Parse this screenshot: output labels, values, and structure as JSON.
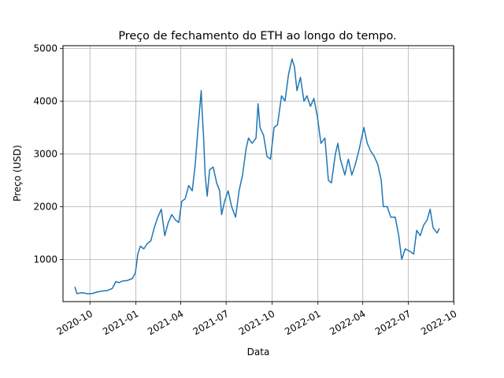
{
  "chart_data": {
    "type": "line",
    "title": "Preço de fechamento do ETH ao longo do tempo.",
    "xlabel": "Data",
    "ylabel": "Preço (USD)",
    "xlim": [
      "2020-08-08",
      "2022-09-30"
    ],
    "ylim": [
      200,
      5050
    ],
    "grid": true,
    "legend": "none",
    "x_ticks": [
      "2020-10",
      "2021-01",
      "2021-04",
      "2021-07",
      "2021-10",
      "2022-01",
      "2022-04",
      "2022-07",
      "2022-10"
    ],
    "x_tick_dates": [
      "2020-10-01",
      "2021-01-01",
      "2021-04-01",
      "2021-07-01",
      "2021-10-01",
      "2022-01-01",
      "2022-04-01",
      "2022-07-01",
      "2022-10-01"
    ],
    "y_ticks": [
      1000,
      2000,
      3000,
      4000,
      5000
    ],
    "y_tick_labels": [
      "1000",
      "2000",
      "3000",
      "4000",
      "5000"
    ],
    "series": [
      {
        "color": "#1f77b4",
        "points": [
          [
            "2020-09-01",
            470
          ],
          [
            "2020-09-05",
            350
          ],
          [
            "2020-09-15",
            370
          ],
          [
            "2020-09-25",
            350
          ],
          [
            "2020-10-05",
            350
          ],
          [
            "2020-10-15",
            380
          ],
          [
            "2020-10-25",
            400
          ],
          [
            "2020-11-05",
            410
          ],
          [
            "2020-11-15",
            450
          ],
          [
            "2020-11-22",
            580
          ],
          [
            "2020-11-28",
            560
          ],
          [
            "2020-12-05",
            590
          ],
          [
            "2020-12-15",
            600
          ],
          [
            "2020-12-25",
            640
          ],
          [
            "2020-12-31",
            740
          ],
          [
            "2021-01-05",
            1100
          ],
          [
            "2021-01-10",
            1250
          ],
          [
            "2021-01-17",
            1200
          ],
          [
            "2021-01-24",
            1300
          ],
          [
            "2021-01-31",
            1350
          ],
          [
            "2021-02-07",
            1600
          ],
          [
            "2021-02-14",
            1800
          ],
          [
            "2021-02-21",
            1950
          ],
          [
            "2021-02-28",
            1450
          ],
          [
            "2021-03-07",
            1700
          ],
          [
            "2021-03-14",
            1850
          ],
          [
            "2021-03-21",
            1750
          ],
          [
            "2021-03-28",
            1700
          ],
          [
            "2021-04-03",
            2100
          ],
          [
            "2021-04-10",
            2150
          ],
          [
            "2021-04-17",
            2400
          ],
          [
            "2021-04-24",
            2300
          ],
          [
            "2021-04-30",
            2800
          ],
          [
            "2021-05-05",
            3400
          ],
          [
            "2021-05-12",
            4200
          ],
          [
            "2021-05-14",
            3800
          ],
          [
            "2021-05-17",
            3300
          ],
          [
            "2021-05-20",
            2600
          ],
          [
            "2021-05-24",
            2200
          ],
          [
            "2021-05-29",
            2700
          ],
          [
            "2021-06-05",
            2750
          ],
          [
            "2021-06-12",
            2450
          ],
          [
            "2021-06-18",
            2300
          ],
          [
            "2021-06-22",
            1850
          ],
          [
            "2021-06-28",
            2100
          ],
          [
            "2021-07-05",
            2300
          ],
          [
            "2021-07-12",
            2000
          ],
          [
            "2021-07-20",
            1800
          ],
          [
            "2021-07-27",
            2300
          ],
          [
            "2021-08-03",
            2600
          ],
          [
            "2021-08-10",
            3100
          ],
          [
            "2021-08-15",
            3300
          ],
          [
            "2021-08-22",
            3200
          ],
          [
            "2021-08-30",
            3300
          ],
          [
            "2021-09-03",
            3950
          ],
          [
            "2021-09-07",
            3500
          ],
          [
            "2021-09-14",
            3350
          ],
          [
            "2021-09-21",
            2950
          ],
          [
            "2021-09-28",
            2900
          ],
          [
            "2021-10-05",
            3500
          ],
          [
            "2021-10-12",
            3550
          ],
          [
            "2021-10-20",
            4100
          ],
          [
            "2021-10-27",
            4000
          ],
          [
            "2021-11-03",
            4500
          ],
          [
            "2021-11-10",
            4800
          ],
          [
            "2021-11-15",
            4650
          ],
          [
            "2021-11-20",
            4200
          ],
          [
            "2021-11-27",
            4450
          ],
          [
            "2021-12-04",
            4000
          ],
          [
            "2021-12-10",
            4100
          ],
          [
            "2021-12-17",
            3900
          ],
          [
            "2021-12-24",
            4050
          ],
          [
            "2021-12-31",
            3700
          ],
          [
            "2022-01-07",
            3200
          ],
          [
            "2022-01-15",
            3300
          ],
          [
            "2022-01-22",
            2500
          ],
          [
            "2022-01-28",
            2450
          ],
          [
            "2022-02-05",
            3000
          ],
          [
            "2022-02-10",
            3200
          ],
          [
            "2022-02-15",
            2900
          ],
          [
            "2022-02-24",
            2600
          ],
          [
            "2022-03-03",
            2900
          ],
          [
            "2022-03-10",
            2600
          ],
          [
            "2022-03-17",
            2800
          ],
          [
            "2022-03-25",
            3100
          ],
          [
            "2022-04-03",
            3500
          ],
          [
            "2022-04-10",
            3200
          ],
          [
            "2022-04-17",
            3050
          ],
          [
            "2022-04-24",
            2950
          ],
          [
            "2022-05-01",
            2800
          ],
          [
            "2022-05-08",
            2500
          ],
          [
            "2022-05-12",
            2000
          ],
          [
            "2022-05-20",
            2000
          ],
          [
            "2022-05-27",
            1800
          ],
          [
            "2022-06-05",
            1800
          ],
          [
            "2022-06-12",
            1450
          ],
          [
            "2022-06-18",
            1000
          ],
          [
            "2022-06-25",
            1200
          ],
          [
            "2022-07-05",
            1150
          ],
          [
            "2022-07-12",
            1100
          ],
          [
            "2022-07-18",
            1550
          ],
          [
            "2022-07-25",
            1450
          ],
          [
            "2022-08-01",
            1650
          ],
          [
            "2022-08-08",
            1750
          ],
          [
            "2022-08-14",
            1950
          ],
          [
            "2022-08-20",
            1600
          ],
          [
            "2022-08-28",
            1500
          ],
          [
            "2022-09-01",
            1580
          ]
        ]
      }
    ]
  }
}
